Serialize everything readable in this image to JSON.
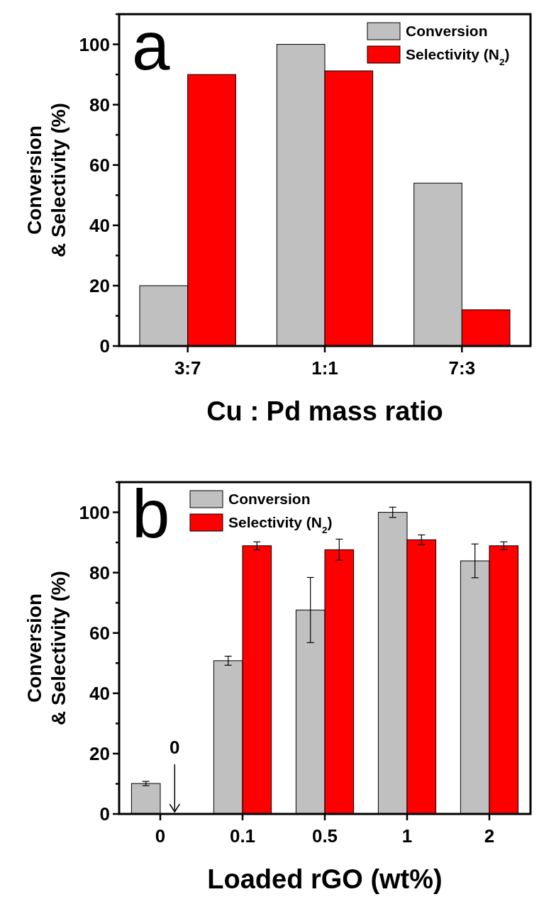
{
  "chart_data": [
    {
      "type": "bar",
      "title": "a",
      "categories": [
        "3:7",
        "1:1",
        "7:3"
      ],
      "xlabel": "Cu : Pd mass ratio",
      "ylabel": "Conversion\n& Selectivity (%)",
      "series": [
        {
          "name": "Conversion",
          "color": "#c0c0c0",
          "values": [
            20,
            100,
            54
          ]
        },
        {
          "name": "Selectivity (N$_{2}$)",
          "color": "#ff0000",
          "values": [
            90,
            91.2,
            12
          ]
        }
      ],
      "ylim": [
        0,
        110
      ],
      "yticks": [
        0,
        {
          "value": 10,
          "label": null
        },
        20,
        {
          "value": 30,
          "label": null
        },
        40,
        {
          "value": 50,
          "label": null
        },
        60,
        {
          "value": 70,
          "label": null
        },
        80,
        {
          "value": 90,
          "label": null
        },
        100,
        {
          "value": 110,
          "label": null
        }
      ],
      "legend": "top right",
      "grid": false
    },
    {
      "type": "bar",
      "title": "b",
      "categories": [
        "0",
        "0.1",
        "0.5",
        "1",
        "2"
      ],
      "xlabel": "Loaded rGO (wt%)",
      "ylabel": "Conversion\n& Selectivity (%)",
      "series": [
        {
          "name": "Conversion",
          "color": "#c0c0c0",
          "values": [
            10.1,
            50.8,
            67.6,
            100,
            83.9
          ],
          "errors": [
            0.7,
            1.5,
            10.8,
            1.7,
            5.6
          ]
        },
        {
          "name": "Selectivity (N$_{2}$)",
          "color": "#ff0000",
          "values": [
            0,
            88.9,
            87.6,
            90.9,
            88.9
          ],
          "errors": [
            null,
            1.3,
            3.5,
            1.6,
            1.3
          ]
        }
      ],
      "annotations": [
        "0"
      ],
      "ylim": [
        0,
        110
      ],
      "yticks": [
        0,
        {
          "value": 10,
          "label": null
        },
        20,
        {
          "value": 30,
          "label": null
        },
        40,
        {
          "value": 50,
          "label": null
        },
        60,
        {
          "value": 70,
          "label": null
        },
        80,
        {
          "value": 90,
          "label": null
        },
        100,
        {
          "value": 110,
          "label": null
        }
      ],
      "legend": "top left",
      "grid": false
    }
  ]
}
